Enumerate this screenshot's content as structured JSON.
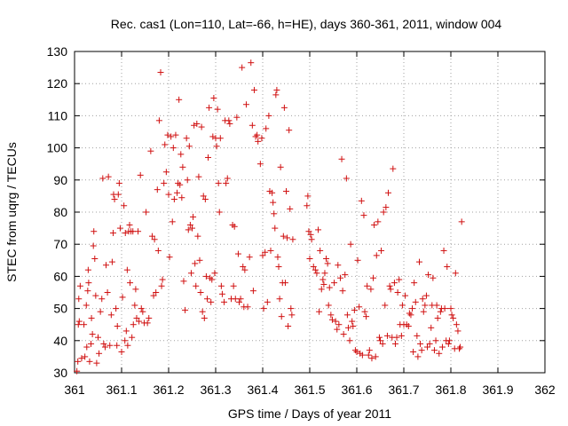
{
  "chart_data": {
    "type": "scatter",
    "title": "Rec. cas1 (Lon=110, Lat=-66, h=HE), days 360-361, 2011, window 004",
    "xlabel": "GPS time / Days of year 2011",
    "ylabel": "STEC from uqrg / TECUs",
    "xlim": [
      361,
      362
    ],
    "ylim": [
      30,
      130
    ],
    "xticks": [
      361,
      361.1,
      361.2,
      361.3,
      361.4,
      361.5,
      361.6,
      361.7,
      361.8,
      361.9,
      362
    ],
    "xtick_labels": [
      "361",
      "361.1",
      "361.2",
      "361.3",
      "361.4",
      "361.5",
      "361.6",
      "361.7",
      "361.8",
      "361.9",
      "362"
    ],
    "yticks": [
      30,
      40,
      50,
      60,
      70,
      80,
      90,
      100,
      110,
      120,
      130
    ],
    "ytick_labels": [
      "30",
      "40",
      "50",
      "60",
      "70",
      "80",
      "90",
      "100",
      "110",
      "120",
      "130"
    ],
    "grid": true,
    "marker": "+",
    "marker_color": "#d01010",
    "points": [
      [
        361.005,
        30.5
      ],
      [
        361.007,
        33.5
      ],
      [
        361.008,
        45
      ],
      [
        361.009,
        53
      ],
      [
        361.01,
        46
      ],
      [
        361.012,
        57
      ],
      [
        361.015,
        34.5
      ],
      [
        361.02,
        45
      ],
      [
        361.022,
        35
      ],
      [
        361.025,
        51
      ],
      [
        361.026,
        38
      ],
      [
        361.028,
        55.5
      ],
      [
        361.029,
        62
      ],
      [
        361.03,
        58
      ],
      [
        361.032,
        33.5
      ],
      [
        361.035,
        39
      ],
      [
        361.036,
        47
      ],
      [
        361.038,
        42
      ],
      [
        361.04,
        69.5
      ],
      [
        361.041,
        74
      ],
      [
        361.043,
        65.5
      ],
      [
        361.045,
        54
      ],
      [
        361.047,
        33
      ],
      [
        361.05,
        41
      ],
      [
        361.052,
        36
      ],
      [
        361.055,
        49
      ],
      [
        361.058,
        53
      ],
      [
        361.06,
        90.5
      ],
      [
        361.062,
        39
      ],
      [
        361.065,
        38
      ],
      [
        361.067,
        63.5
      ],
      [
        361.07,
        55
      ],
      [
        361.072,
        91
      ],
      [
        361.075,
        38.5
      ],
      [
        361.078,
        48
      ],
      [
        361.08,
        64.5
      ],
      [
        361.082,
        73.5
      ],
      [
        361.083,
        85.5
      ],
      [
        361.085,
        84
      ],
      [
        361.088,
        50
      ],
      [
        361.09,
        38.5
      ],
      [
        361.091,
        44.5
      ],
      [
        361.093,
        85.5
      ],
      [
        361.095,
        89
      ],
      [
        361.097,
        75
      ],
      [
        361.1,
        36.5
      ],
      [
        361.102,
        53.5
      ],
      [
        361.105,
        82
      ],
      [
        361.107,
        40
      ],
      [
        361.108,
        73.5
      ],
      [
        361.11,
        43
      ],
      [
        361.112,
        62
      ],
      [
        361.113,
        38.5
      ],
      [
        361.115,
        74
      ],
      [
        361.117,
        76
      ],
      [
        361.118,
        58
      ],
      [
        361.12,
        74
      ],
      [
        361.122,
        41
      ],
      [
        361.124,
        74
      ],
      [
        361.125,
        45
      ],
      [
        361.128,
        51
      ],
      [
        361.13,
        56
      ],
      [
        361.132,
        47
      ],
      [
        361.135,
        74
      ],
      [
        361.137,
        46
      ],
      [
        361.14,
        91.5
      ],
      [
        361.142,
        50
      ],
      [
        361.145,
        49
      ],
      [
        361.148,
        45.5
      ],
      [
        361.152,
        80
      ],
      [
        361.155,
        45.5
      ],
      [
        361.158,
        47
      ],
      [
        361.162,
        99
      ],
      [
        361.165,
        72.5
      ],
      [
        361.168,
        54
      ],
      [
        361.17,
        71.5
      ],
      [
        361.173,
        55
      ],
      [
        361.176,
        87
      ],
      [
        361.178,
        68
      ],
      [
        361.18,
        108.5
      ],
      [
        361.183,
        123.5
      ],
      [
        361.185,
        57
      ],
      [
        361.187,
        59
      ],
      [
        361.19,
        89
      ],
      [
        361.192,
        101
      ],
      [
        361.195,
        92.5
      ],
      [
        361.198,
        104
      ],
      [
        361.2,
        85.5
      ],
      [
        361.202,
        66
      ],
      [
        361.205,
        103.5
      ],
      [
        361.208,
        77
      ],
      [
        361.21,
        100
      ],
      [
        361.212,
        84
      ],
      [
        361.215,
        104
      ],
      [
        361.218,
        86
      ],
      [
        361.22,
        89
      ],
      [
        361.222,
        115
      ],
      [
        361.224,
        88.5
      ],
      [
        361.226,
        98
      ],
      [
        361.228,
        84.5
      ],
      [
        361.23,
        94
      ],
      [
        361.232,
        58.5
      ],
      [
        361.235,
        49.5
      ],
      [
        361.238,
        103
      ],
      [
        361.24,
        90
      ],
      [
        361.242,
        74.5
      ],
      [
        361.244,
        100.5
      ],
      [
        361.246,
        76
      ],
      [
        361.248,
        61
      ],
      [
        361.25,
        75
      ],
      [
        361.252,
        78.5
      ],
      [
        361.254,
        107
      ],
      [
        361.256,
        64
      ],
      [
        361.258,
        57
      ],
      [
        361.26,
        107.5
      ],
      [
        361.262,
        72.5
      ],
      [
        361.264,
        91
      ],
      [
        361.266,
        65
      ],
      [
        361.268,
        55
      ],
      [
        361.27,
        106.5
      ],
      [
        361.272,
        49
      ],
      [
        361.274,
        85
      ],
      [
        361.276,
        47
      ],
      [
        361.278,
        84
      ],
      [
        361.28,
        60
      ],
      [
        361.282,
        53
      ],
      [
        361.284,
        97
      ],
      [
        361.286,
        112.5
      ],
      [
        361.288,
        59.5
      ],
      [
        361.29,
        52
      ],
      [
        361.292,
        59
      ],
      [
        361.294,
        103.5
      ],
      [
        361.296,
        115.5
      ],
      [
        361.298,
        61
      ],
      [
        361.3,
        103
      ],
      [
        361.302,
        100.5
      ],
      [
        361.304,
        112
      ],
      [
        361.306,
        89
      ],
      [
        361.308,
        80
      ],
      [
        361.31,
        103
      ],
      [
        361.312,
        57
      ],
      [
        361.314,
        54.5
      ],
      [
        361.318,
        52
      ],
      [
        361.32,
        108.5
      ],
      [
        361.322,
        89
      ],
      [
        361.325,
        90.5
      ],
      [
        361.328,
        108.5
      ],
      [
        361.33,
        107.5
      ],
      [
        361.333,
        53
      ],
      [
        361.336,
        76
      ],
      [
        361.338,
        57
      ],
      [
        361.34,
        75.5
      ],
      [
        361.342,
        53
      ],
      [
        361.345,
        109.5
      ],
      [
        361.348,
        67
      ],
      [
        361.35,
        52
      ],
      [
        361.353,
        53
      ],
      [
        361.356,
        125
      ],
      [
        361.358,
        63
      ],
      [
        361.36,
        50.5
      ],
      [
        361.362,
        62
      ],
      [
        361.365,
        113.5
      ],
      [
        361.368,
        50.5
      ],
      [
        361.372,
        66
      ],
      [
        361.375,
        126.5
      ],
      [
        361.378,
        107
      ],
      [
        361.38,
        55.5
      ],
      [
        361.382,
        118
      ],
      [
        361.385,
        103.5
      ],
      [
        361.388,
        104
      ],
      [
        361.39,
        102
      ],
      [
        361.395,
        95
      ],
      [
        361.398,
        103
      ],
      [
        361.4,
        66.5
      ],
      [
        361.402,
        50
      ],
      [
        361.405,
        67.5
      ],
      [
        361.407,
        106
      ],
      [
        361.41,
        52
      ],
      [
        361.413,
        110
      ],
      [
        361.415,
        86.5
      ],
      [
        361.417,
        68
      ],
      [
        361.42,
        86
      ],
      [
        361.422,
        83
      ],
      [
        361.424,
        79.5
      ],
      [
        361.426,
        75
      ],
      [
        361.428,
        116.5
      ],
      [
        361.43,
        118
      ],
      [
        361.432,
        66
      ],
      [
        361.434,
        63
      ],
      [
        361.436,
        53
      ],
      [
        361.438,
        94
      ],
      [
        361.44,
        47.5
      ],
      [
        361.442,
        58
      ],
      [
        361.444,
        72.5
      ],
      [
        361.446,
        112.5
      ],
      [
        361.448,
        58
      ],
      [
        361.45,
        86.5
      ],
      [
        361.452,
        72
      ],
      [
        361.454,
        44.5
      ],
      [
        361.456,
        105.5
      ],
      [
        361.458,
        81
      ],
      [
        361.46,
        50
      ],
      [
        361.462,
        48
      ],
      [
        361.464,
        71.5
      ],
      [
        361.494,
        82
      ],
      [
        361.496,
        85
      ],
      [
        361.498,
        74
      ],
      [
        361.5,
        65.5
      ],
      [
        361.502,
        73
      ],
      [
        361.504,
        71.5
      ],
      [
        361.508,
        63
      ],
      [
        361.512,
        62
      ],
      [
        361.515,
        61
      ],
      [
        361.518,
        74.5
      ],
      [
        361.52,
        49
      ],
      [
        361.522,
        68
      ],
      [
        361.525,
        56
      ],
      [
        361.528,
        59
      ],
      [
        361.53,
        57.5
      ],
      [
        361.532,
        61
      ],
      [
        361.535,
        65.5
      ],
      [
        361.538,
        64
      ],
      [
        361.54,
        51
      ],
      [
        361.542,
        56.5
      ],
      [
        361.545,
        48
      ],
      [
        361.548,
        46.5
      ],
      [
        361.552,
        58
      ],
      [
        361.555,
        46
      ],
      [
        361.558,
        43.5
      ],
      [
        361.56,
        63.5
      ],
      [
        361.562,
        45
      ],
      [
        361.565,
        59.5
      ],
      [
        361.568,
        96.5
      ],
      [
        361.57,
        55.5
      ],
      [
        361.572,
        42
      ],
      [
        361.575,
        60.5
      ],
      [
        361.578,
        90.5
      ],
      [
        361.58,
        48
      ],
      [
        361.582,
        44
      ],
      [
        361.585,
        40
      ],
      [
        361.587,
        70
      ],
      [
        361.59,
        46
      ],
      [
        361.592,
        44.5
      ],
      [
        361.595,
        49.5
      ],
      [
        361.597,
        37
      ],
      [
        361.6,
        36.5
      ],
      [
        361.602,
        65
      ],
      [
        361.605,
        50.5
      ],
      [
        361.607,
        36
      ],
      [
        361.61,
        83.5
      ],
      [
        361.612,
        35.5
      ],
      [
        361.615,
        79
      ],
      [
        361.617,
        49
      ],
      [
        361.62,
        47.5
      ],
      [
        361.622,
        57
      ],
      [
        361.625,
        35.5
      ],
      [
        361.627,
        37
      ],
      [
        361.63,
        56
      ],
      [
        361.632,
        34.5
      ],
      [
        361.635,
        59.5
      ],
      [
        361.637,
        76
      ],
      [
        361.64,
        35
      ],
      [
        361.642,
        66.5
      ],
      [
        361.645,
        77
      ],
      [
        361.648,
        41
      ],
      [
        361.65,
        40
      ],
      [
        361.652,
        68
      ],
      [
        361.655,
        39
      ],
      [
        361.657,
        80
      ],
      [
        361.66,
        51
      ],
      [
        361.662,
        81.5
      ],
      [
        361.665,
        41.5
      ],
      [
        361.667,
        86
      ],
      [
        361.67,
        57
      ],
      [
        361.672,
        56
      ],
      [
        361.675,
        41
      ],
      [
        361.677,
        93.5
      ],
      [
        361.68,
        58
      ],
      [
        361.682,
        39
      ],
      [
        361.685,
        41
      ],
      [
        361.687,
        55
      ],
      [
        361.69,
        59
      ],
      [
        361.692,
        45
      ],
      [
        361.695,
        41.5
      ],
      [
        361.697,
        51
      ],
      [
        361.7,
        45
      ],
      [
        361.703,
        54
      ],
      [
        361.706,
        45
      ],
      [
        361.71,
        44.5
      ],
      [
        361.712,
        48.5
      ],
      [
        361.715,
        48
      ],
      [
        361.718,
        50
      ],
      [
        361.72,
        36.5
      ],
      [
        361.722,
        58
      ],
      [
        361.725,
        52
      ],
      [
        361.728,
        41.5
      ],
      [
        361.73,
        35
      ],
      [
        361.733,
        64.5
      ],
      [
        361.735,
        39
      ],
      [
        361.738,
        37
      ],
      [
        361.74,
        53
      ],
      [
        361.742,
        49
      ],
      [
        361.745,
        51
      ],
      [
        361.748,
        54
      ],
      [
        361.75,
        38
      ],
      [
        361.752,
        60.5
      ],
      [
        361.755,
        39
      ],
      [
        361.758,
        44
      ],
      [
        361.76,
        51
      ],
      [
        361.762,
        59.5
      ],
      [
        361.765,
        37
      ],
      [
        361.768,
        40
      ],
      [
        361.77,
        51
      ],
      [
        361.772,
        47
      ],
      [
        361.775,
        36
      ],
      [
        361.778,
        49
      ],
      [
        361.78,
        50
      ],
      [
        361.782,
        38
      ],
      [
        361.785,
        68
      ],
      [
        361.787,
        50
      ],
      [
        361.79,
        40
      ],
      [
        361.792,
        63
      ],
      [
        361.795,
        39
      ],
      [
        361.797,
        40
      ],
      [
        361.8,
        50
      ],
      [
        361.802,
        48
      ],
      [
        361.805,
        47
      ],
      [
        361.808,
        37.5
      ],
      [
        361.81,
        61
      ],
      [
        361.812,
        45
      ],
      [
        361.815,
        43
      ],
      [
        361.818,
        37.5
      ],
      [
        361.82,
        38
      ],
      [
        361.823,
        77
      ]
    ]
  }
}
